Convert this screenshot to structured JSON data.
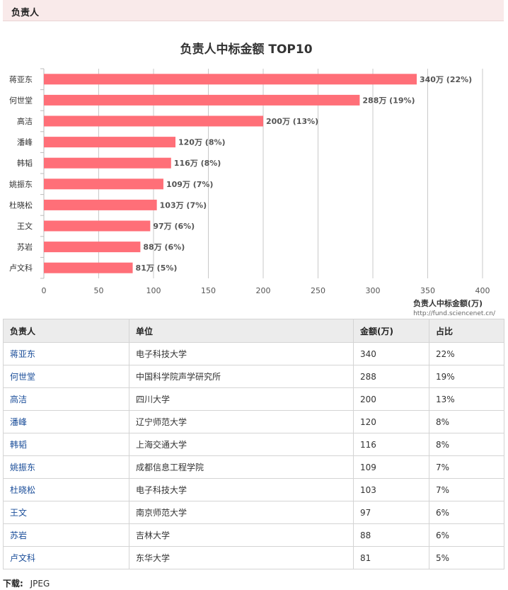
{
  "section": {
    "title": "负责人"
  },
  "chart_data": {
    "type": "bar",
    "orientation": "horizontal",
    "title": "负责人中标金额 TOP10",
    "categories": [
      "蒋亚东",
      "何世堂",
      "高洁",
      "潘峰",
      "韩韬",
      "姚振东",
      "杜晓松",
      "王文",
      "苏岩",
      "卢文科"
    ],
    "values": [
      340,
      288,
      200,
      120,
      116,
      109,
      103,
      97,
      88,
      81
    ],
    "data_labels": [
      "340万 (22%)",
      "288万 (19%)",
      "200万 (13%)",
      "120万 (8%)",
      "116万 (8%)",
      "109万 (7%)",
      "103万 (7%)",
      "97万 (6%)",
      "88万 (6%)",
      "81万 (5%)"
    ],
    "xlim": [
      0,
      400
    ],
    "xticks": [
      0,
      50,
      100,
      150,
      200,
      250,
      300,
      350,
      400
    ],
    "xlabel": "负责人中标金额(万)",
    "ylabel": "",
    "source": "http://fund.sciencenet.cn/",
    "grid": "vertical",
    "bar_color": "#ff6f78"
  },
  "table": {
    "headers": [
      "负责人",
      "单位",
      "金额(万)",
      "占比"
    ],
    "rows": [
      [
        "蒋亚东",
        "电子科技大学",
        "340",
        "22%"
      ],
      [
        "何世堂",
        "中国科学院声学研究所",
        "288",
        "19%"
      ],
      [
        "高洁",
        "四川大学",
        "200",
        "13%"
      ],
      [
        "潘峰",
        "辽宁师范大学",
        "120",
        "8%"
      ],
      [
        "韩韬",
        "上海交通大学",
        "116",
        "8%"
      ],
      [
        "姚振东",
        "成都信息工程学院",
        "109",
        "7%"
      ],
      [
        "杜晓松",
        "电子科技大学",
        "103",
        "7%"
      ],
      [
        "王文",
        "南京师范大学",
        "97",
        "6%"
      ],
      [
        "苏岩",
        "吉林大学",
        "88",
        "6%"
      ],
      [
        "卢文科",
        "东华大学",
        "81",
        "5%"
      ]
    ]
  },
  "footer": {
    "label": "下载:",
    "link": "JPEG"
  }
}
